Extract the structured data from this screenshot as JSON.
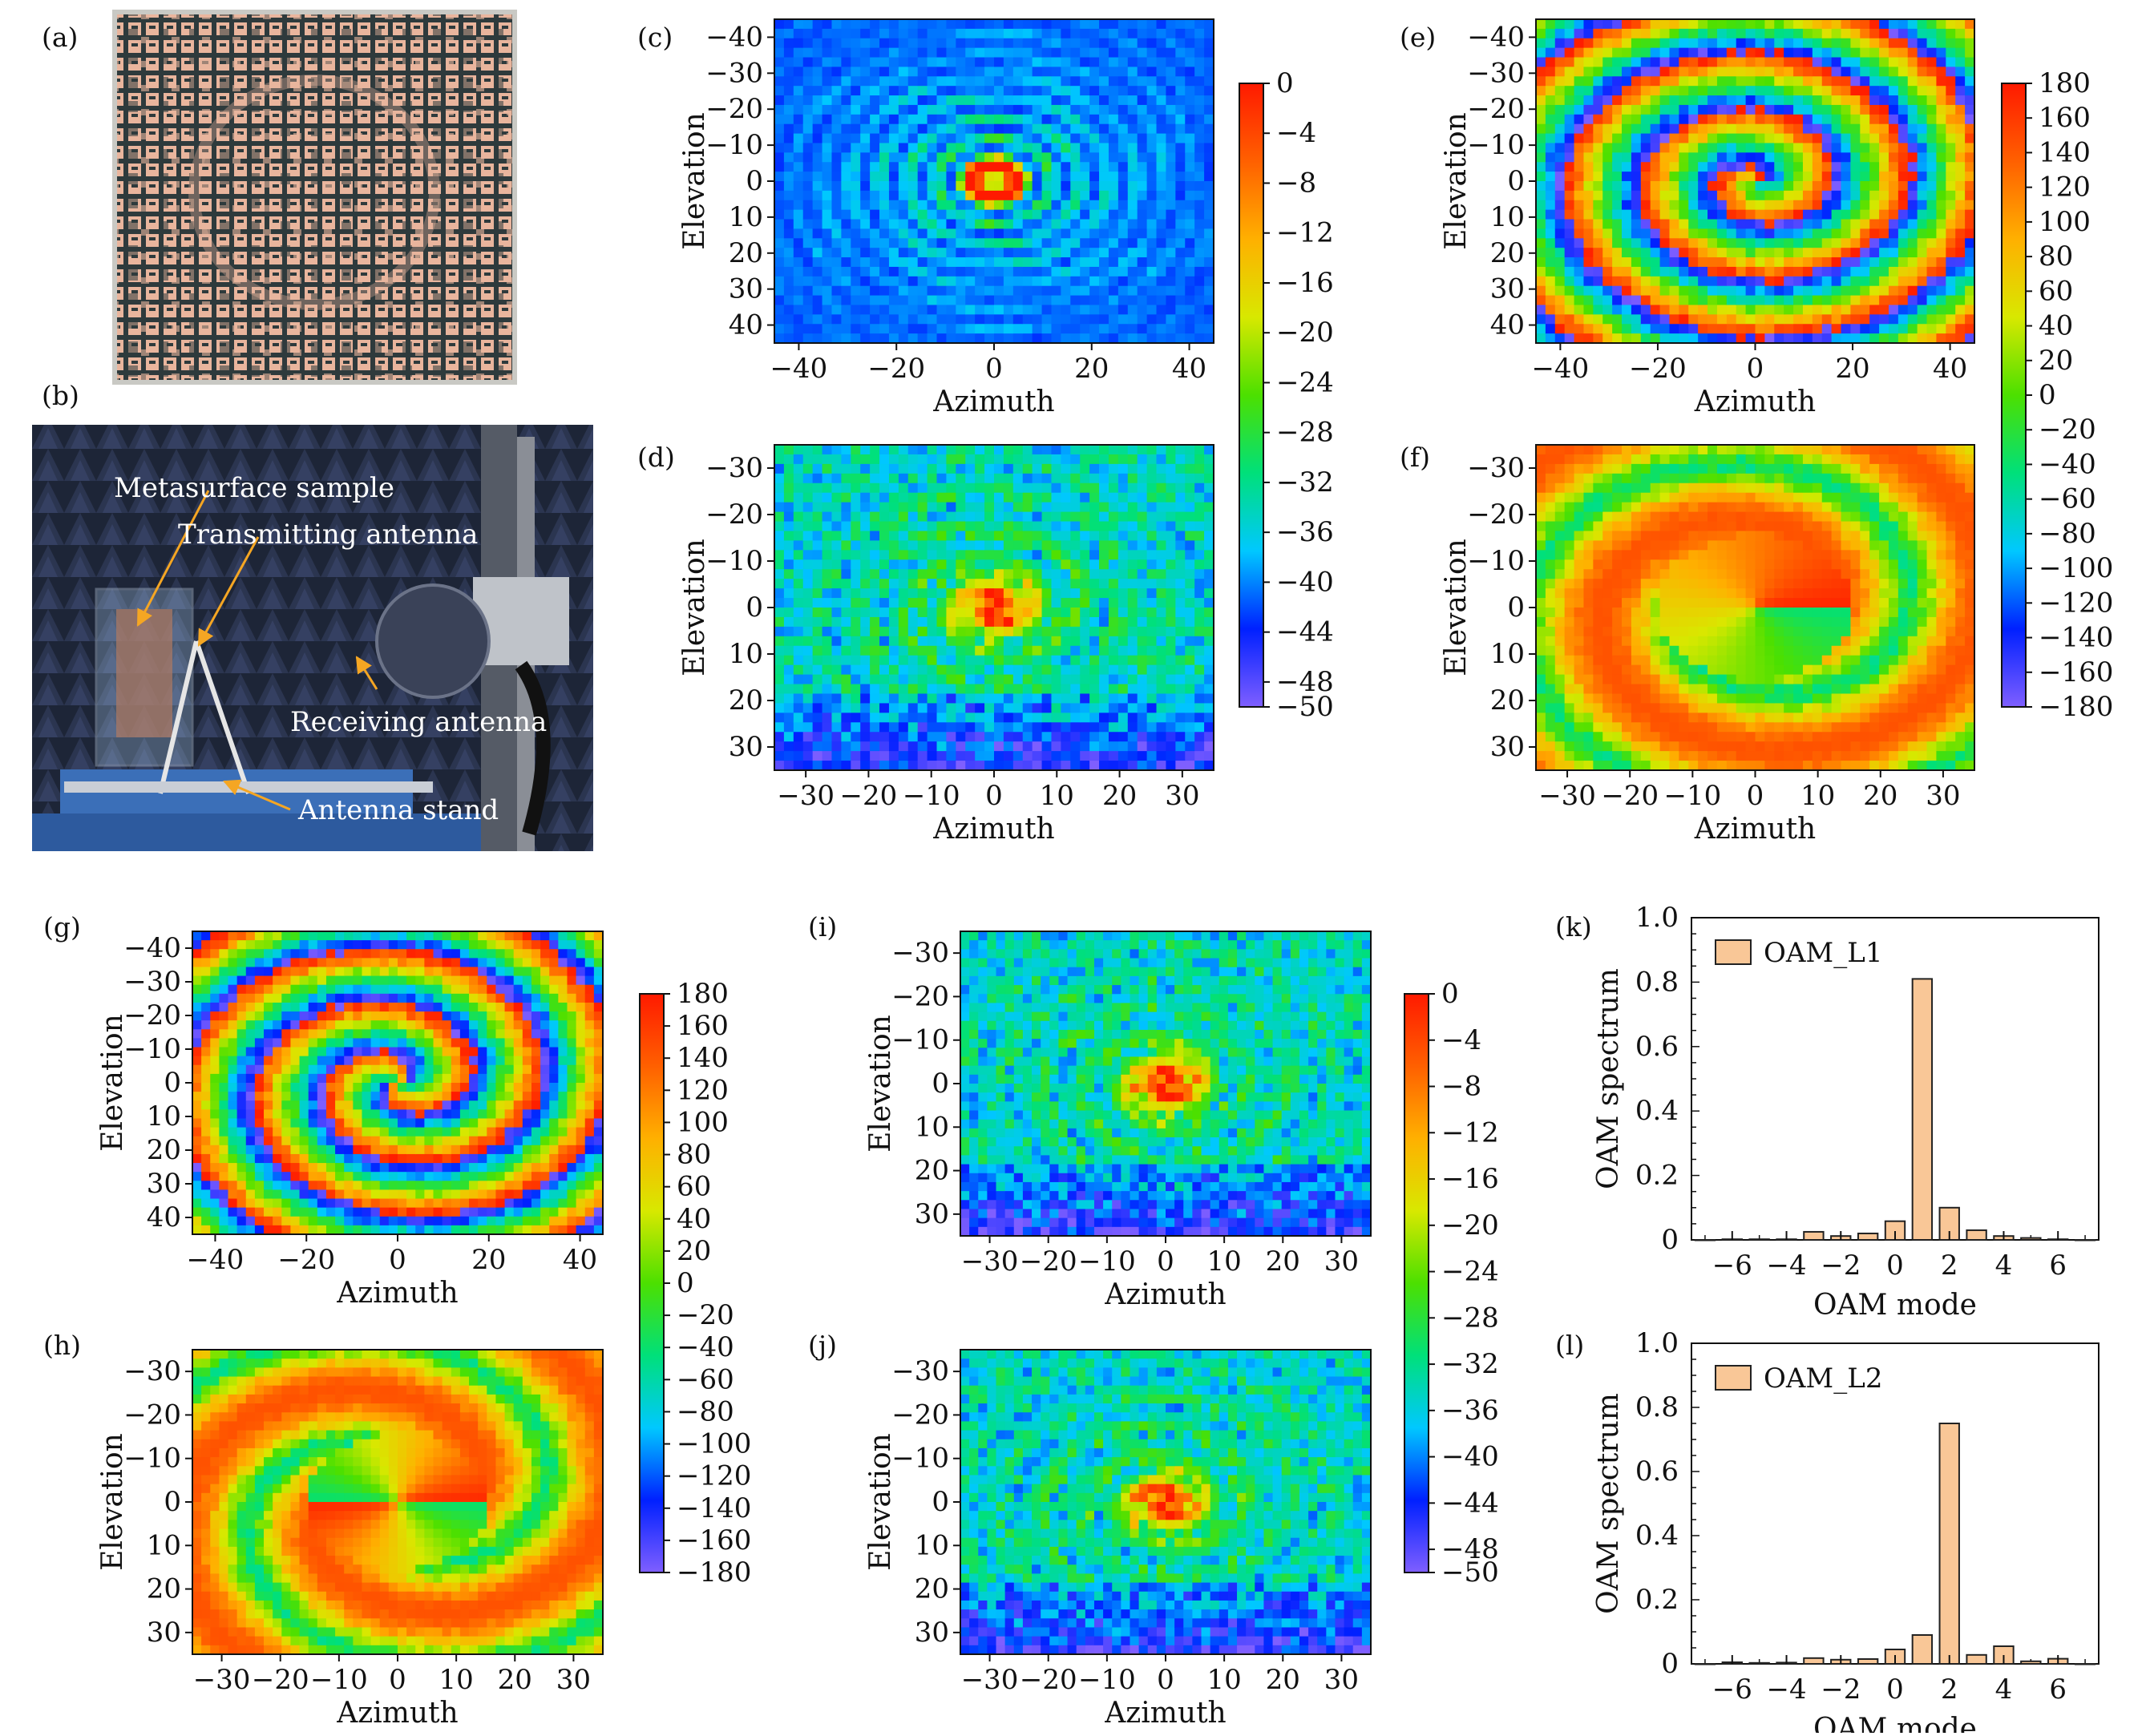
{
  "panel_labels": {
    "a": "(a)",
    "b": "(b)",
    "c": "(c)",
    "d": "(d)",
    "e": "(e)",
    "f": "(f)",
    "g": "(g)",
    "h": "(h)",
    "i": "(i)",
    "j": "(j)",
    "k": "(k)",
    "l": "(l)"
  },
  "photo_b": {
    "labels": {
      "metasurface": "Metasurface sample",
      "transmitting": "Transmitting antenna",
      "receiving": "Receiving antenna",
      "stand": "Antenna stand"
    },
    "colors": {
      "background": "#1c2438",
      "arrow": "#f5a623",
      "acrylic": "#9ab8d8",
      "table": "#3b6fb8"
    }
  },
  "photo_a": {
    "colors": {
      "board": "#e9b59d",
      "grid": "#2e3a3c"
    }
  },
  "axes": {
    "azimuth": "Azimuth",
    "elevation": "Elevation",
    "oam_spectrum": "OAM spectrum",
    "oam_mode": "OAM mode"
  },
  "colorbars": {
    "amplitude": {
      "ticks": [
        "0",
        "−4",
        "−8",
        "−12",
        "−16",
        "−20",
        "−24",
        "−28",
        "−32",
        "−36",
        "−40",
        "−44",
        "−48",
        "−50"
      ],
      "range": [
        -50,
        0
      ]
    },
    "phase": {
      "ticks": [
        "180",
        "160",
        "140",
        "120",
        "100",
        "80",
        "60",
        "40",
        "20",
        "0",
        "−20",
        "−40",
        "−60",
        "−80",
        "−100",
        "−120",
        "−140",
        "−160",
        "−180"
      ],
      "range": [
        -180,
        180
      ]
    },
    "colormap": [
      "#7f5fff",
      "#0020ff",
      "#00c8ff",
      "#00e07a",
      "#4ce000",
      "#d8e800",
      "#ffb000",
      "#ff6000",
      "#ff1a00"
    ]
  },
  "chart_data": [
    {
      "panel": "c",
      "type": "heatmap",
      "quantity": "amplitude",
      "xlabel": "Azimuth",
      "ylabel": "Elevation",
      "xlim": [
        -45,
        45
      ],
      "ylim": [
        45,
        -45
      ],
      "xticks": [
        "−40",
        "−20",
        "0",
        "20",
        "40"
      ],
      "yticks": [
        "−40",
        "−30",
        "−20",
        "−10",
        "0",
        "10",
        "20",
        "30",
        "40"
      ],
      "pattern": "donut",
      "rings": 4,
      "null_center": true
    },
    {
      "panel": "d",
      "type": "heatmap",
      "quantity": "amplitude",
      "xlabel": "Azimuth",
      "ylabel": "Elevation",
      "xlim": [
        -35,
        35
      ],
      "ylim": [
        35,
        -35
      ],
      "xticks": [
        "−30",
        "−20",
        "−10",
        "0",
        "10",
        "20",
        "30"
      ],
      "yticks": [
        "−30",
        "−20",
        "−10",
        "0",
        "10",
        "20",
        "30"
      ],
      "pattern": "measured-amplitude"
    },
    {
      "panel": "e",
      "type": "heatmap",
      "quantity": "phase",
      "xlabel": "Azimuth",
      "ylabel": "Elevation",
      "xlim": [
        -45,
        45
      ],
      "ylim": [
        45,
        -45
      ],
      "xticks": [
        "−40",
        "−20",
        "0",
        "20",
        "40"
      ],
      "yticks": [
        "−40",
        "−30",
        "−20",
        "−10",
        "0",
        "10",
        "20",
        "30",
        "40"
      ],
      "pattern": "spiral",
      "oam_mode": 1
    },
    {
      "panel": "f",
      "type": "heatmap",
      "quantity": "phase",
      "xlabel": "Azimuth",
      "ylabel": "Elevation",
      "xlim": [
        -35,
        35
      ],
      "ylim": [
        35,
        -35
      ],
      "xticks": [
        "−30",
        "−20",
        "−10",
        "0",
        "10",
        "20",
        "30"
      ],
      "yticks": [
        "−30",
        "−20",
        "−10",
        "0",
        "10",
        "20",
        "30"
      ],
      "pattern": "measured-spiral",
      "oam_mode": 1
    },
    {
      "panel": "g",
      "type": "heatmap",
      "quantity": "phase",
      "xlabel": "Azimuth",
      "ylabel": "Elevation",
      "xlim": [
        -45,
        45
      ],
      "ylim": [
        45,
        -45
      ],
      "xticks": [
        "−40",
        "−20",
        "0",
        "20",
        "40"
      ],
      "yticks": [
        "−40",
        "−30",
        "−20",
        "−10",
        "0",
        "10",
        "20",
        "30",
        "40"
      ],
      "pattern": "spiral",
      "oam_mode": 2
    },
    {
      "panel": "h",
      "type": "heatmap",
      "quantity": "phase",
      "xlabel": "Azimuth",
      "ylabel": "Elevation",
      "xlim": [
        -35,
        35
      ],
      "ylim": [
        35,
        -35
      ],
      "xticks": [
        "−30",
        "−20",
        "−10",
        "0",
        "10",
        "20",
        "30"
      ],
      "yticks": [
        "−30",
        "−20",
        "−10",
        "0",
        "10",
        "20",
        "30"
      ],
      "pattern": "measured-spiral",
      "oam_mode": 2
    },
    {
      "panel": "i",
      "type": "heatmap",
      "quantity": "amplitude",
      "xlabel": "Azimuth",
      "ylabel": "Elevation",
      "xlim": [
        -35,
        35
      ],
      "ylim": [
        35,
        -35
      ],
      "xticks": [
        "−30",
        "−20",
        "−10",
        "0",
        "10",
        "20",
        "30"
      ],
      "yticks": [
        "−30",
        "−20",
        "−10",
        "0",
        "10",
        "20",
        "30"
      ],
      "pattern": "measured-amplitude"
    },
    {
      "panel": "j",
      "type": "heatmap",
      "quantity": "amplitude",
      "xlabel": "Azimuth",
      "ylabel": "Elevation",
      "xlim": [
        -35,
        35
      ],
      "ylim": [
        35,
        -35
      ],
      "xticks": [
        "−30",
        "−20",
        "−10",
        "0",
        "10",
        "20",
        "30"
      ],
      "yticks": [
        "−30",
        "−20",
        "−10",
        "0",
        "10",
        "20",
        "30"
      ],
      "pattern": "measured-amplitude"
    },
    {
      "panel": "k",
      "type": "bar",
      "xlabel": "OAM mode",
      "ylabel": "OAM spectrum",
      "xlim": [
        -7.5,
        7.5
      ],
      "ylim": [
        0,
        1.0
      ],
      "xticks": [
        "−6",
        "−4",
        "−2",
        "0",
        "2",
        "4",
        "6"
      ],
      "yticks": [
        "0",
        "0.2",
        "0.4",
        "0.6",
        "0.8",
        "1.0"
      ],
      "series": [
        {
          "name": "OAM_L1",
          "color": "#f9c797",
          "edge": "#222222",
          "x": [
            -7,
            -6,
            -5,
            -4,
            -3,
            -2,
            -1,
            0,
            1,
            2,
            3,
            4,
            5,
            6,
            7
          ],
          "values": [
            0.0,
            0.002,
            0.002,
            0.002,
            0.025,
            0.012,
            0.02,
            0.058,
            0.81,
            0.1,
            0.03,
            0.012,
            0.006,
            0.002,
            0.0
          ]
        }
      ]
    },
    {
      "panel": "l",
      "type": "bar",
      "xlabel": "OAM mode",
      "ylabel": "OAM spectrum",
      "xlim": [
        -7.5,
        7.5
      ],
      "ylim": [
        0,
        1.0
      ],
      "xticks": [
        "−6",
        "−4",
        "−2",
        "0",
        "2",
        "4",
        "6"
      ],
      "yticks": [
        "0",
        "0.2",
        "0.4",
        "0.6",
        "0.8",
        "1.0"
      ],
      "series": [
        {
          "name": "OAM_L2",
          "color": "#f9c797",
          "edge": "#222222",
          "x": [
            -7,
            -6,
            -5,
            -4,
            -3,
            -2,
            -1,
            0,
            1,
            2,
            3,
            4,
            5,
            6,
            7
          ],
          "values": [
            0.0,
            0.005,
            0.003,
            0.004,
            0.018,
            0.013,
            0.015,
            0.045,
            0.09,
            0.75,
            0.028,
            0.055,
            0.008,
            0.016,
            0.0
          ]
        }
      ]
    }
  ]
}
